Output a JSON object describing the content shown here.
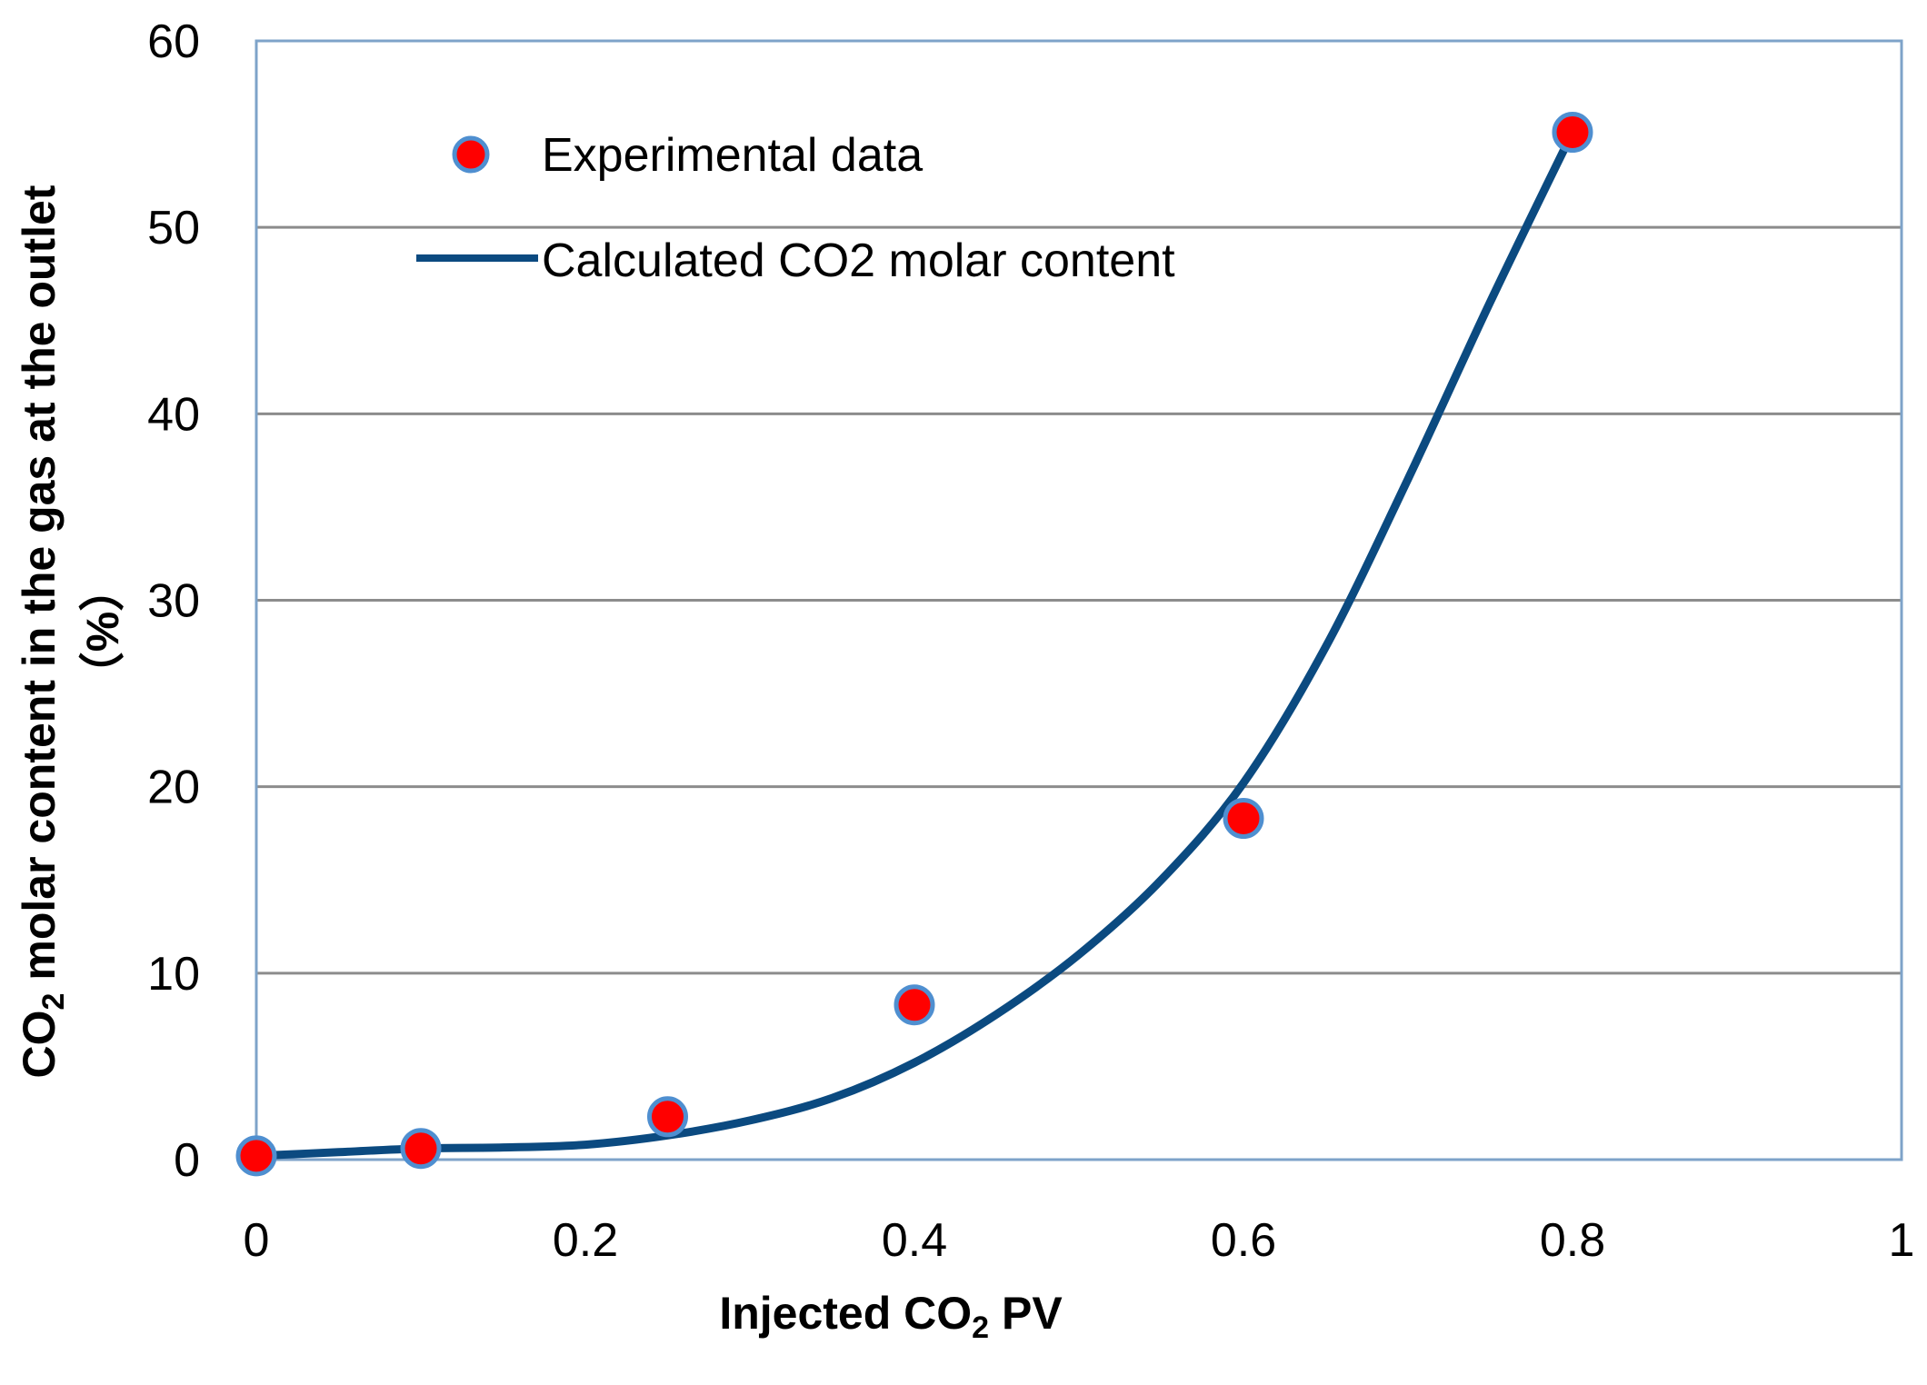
{
  "chart_data": {
    "type": "scatter",
    "title": "",
    "xlabel": {
      "pre": "Injected CO",
      "sub": "2",
      "post": " PV"
    },
    "ylabel": {
      "pre": "CO",
      "sub": "2",
      "post": " molar content in the gas at the outlet",
      "unit": "（%）"
    },
    "xlim": [
      0,
      1
    ],
    "ylim": [
      0,
      60
    ],
    "x_ticks": [
      "0",
      "0.2",
      "0.4",
      "0.6",
      "0.8",
      "1"
    ],
    "y_ticks": [
      "0",
      "10",
      "20",
      "30",
      "40",
      "50",
      "60"
    ],
    "grid": "horizontal",
    "legend_position": "top-left",
    "series": [
      {
        "name": "Experimental data",
        "kind": "points",
        "color": "#ff0000",
        "edge_color": "#4f8fd0",
        "x": [
          0,
          0.1,
          0.25,
          0.4,
          0.6,
          0.8
        ],
        "y": [
          0.2,
          0.6,
          2.3,
          8.3,
          18.3,
          55.1
        ]
      },
      {
        "name": "Calculated CO2 molar content",
        "kind": "line",
        "color": "#0b4a80",
        "x": [
          0,
          0.05,
          0.1,
          0.15,
          0.2,
          0.25,
          0.3,
          0.35,
          0.4,
          0.45,
          0.5,
          0.55,
          0.6,
          0.65,
          0.7,
          0.75,
          0.8
        ],
        "y": [
          0.2,
          0.4,
          0.6,
          0.65,
          0.8,
          1.3,
          2.1,
          3.3,
          5.2,
          7.8,
          11.0,
          15.0,
          20.2,
          27.5,
          36.5,
          46.0,
          55.1
        ]
      }
    ]
  }
}
